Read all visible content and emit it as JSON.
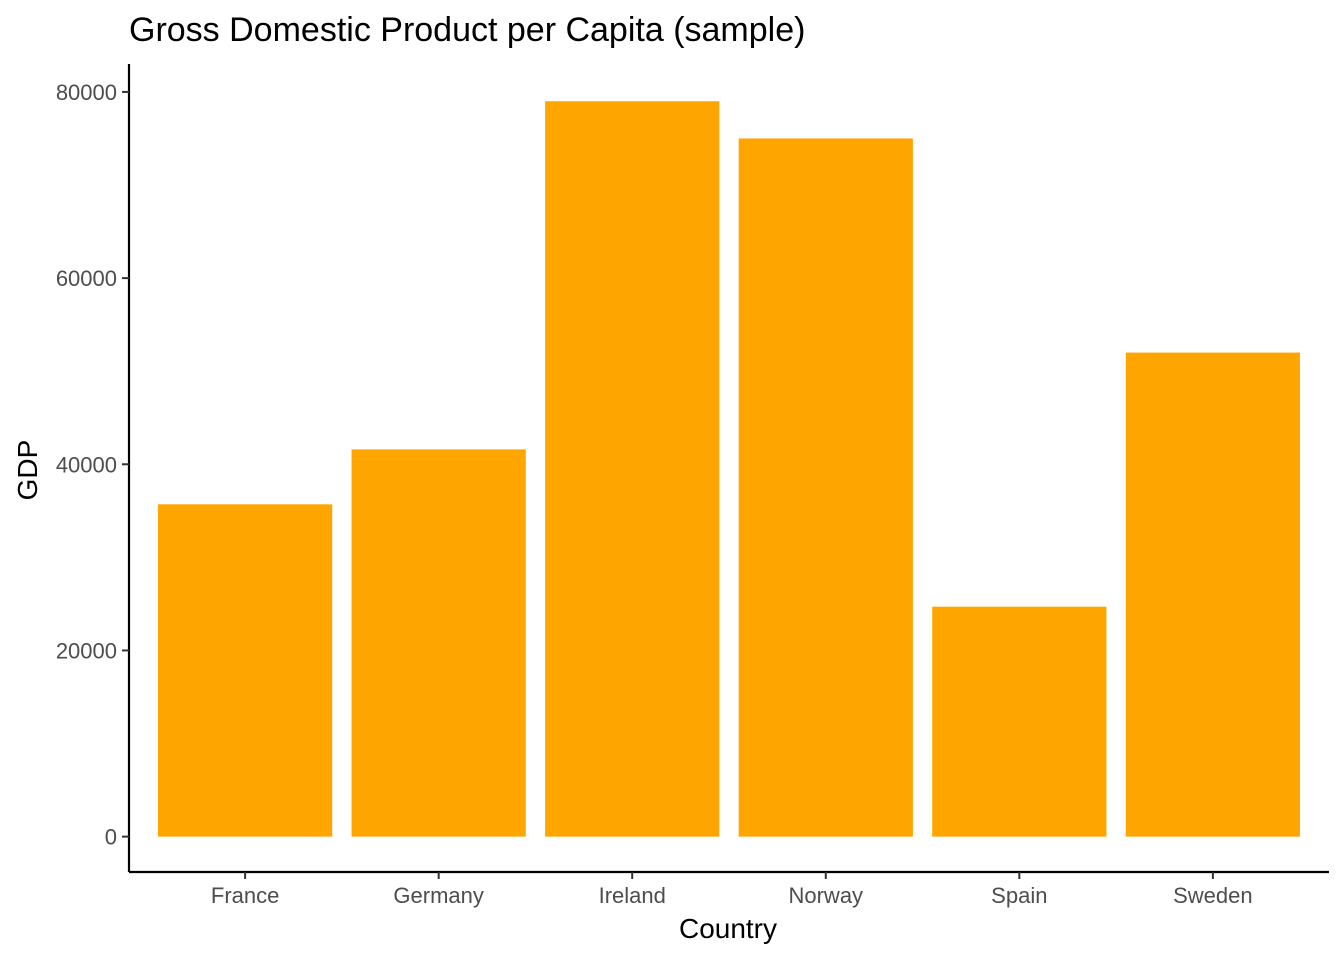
{
  "chart_data": {
    "type": "bar",
    "title": "Gross Domestic Product per Capita (sample)",
    "xlabel": "Country",
    "ylabel": "GDP",
    "categories": [
      "France",
      "Germany",
      "Ireland",
      "Norway",
      "Spain",
      "Sweden"
    ],
    "values": [
      35700,
      41600,
      79000,
      75000,
      24700,
      52000
    ],
    "ylim": [
      -3800,
      83000
    ],
    "yticks": [
      0,
      20000,
      40000,
      60000,
      80000
    ],
    "ytick_labels": [
      "0",
      "20000",
      "40000",
      "60000",
      "80000"
    ],
    "bar_color": "#FFA500",
    "grid": false,
    "legend": "none"
  }
}
